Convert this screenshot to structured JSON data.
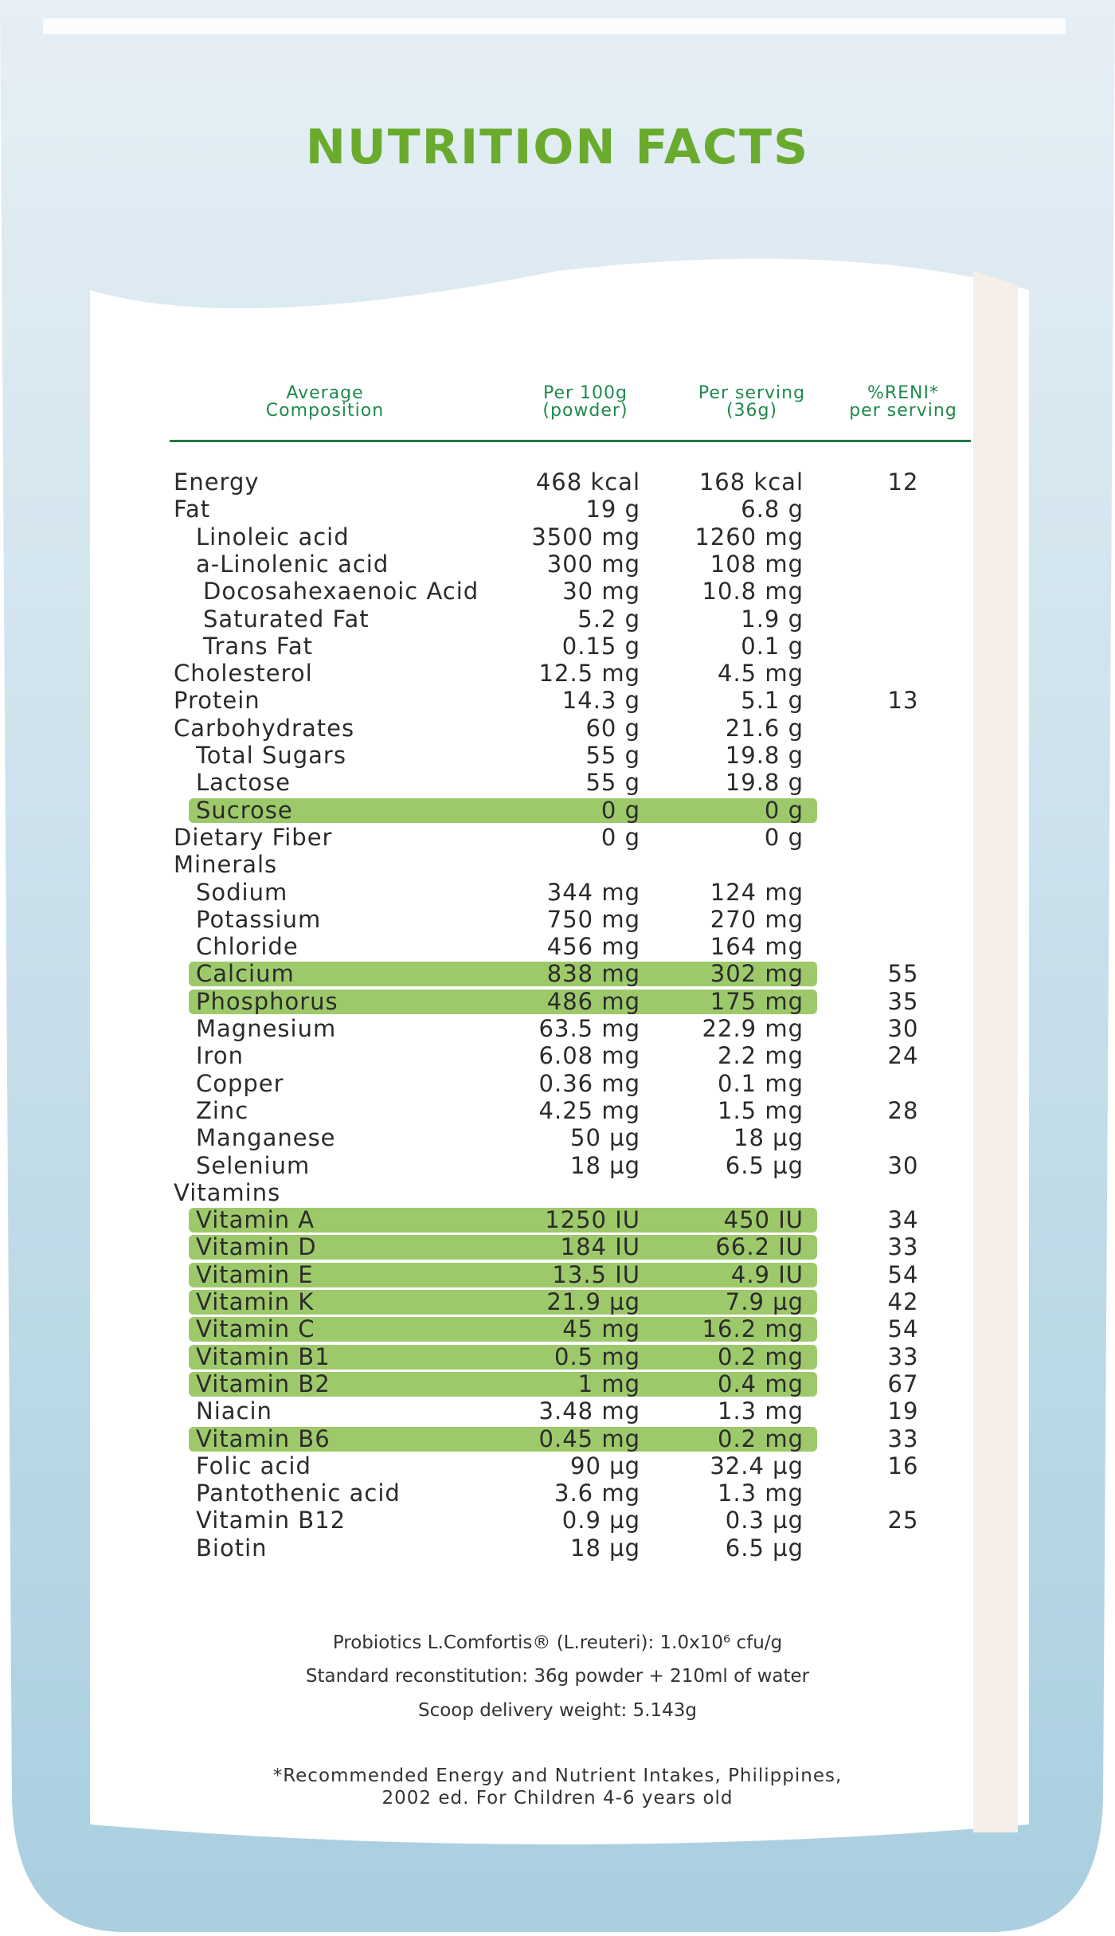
{
  "header": {
    "title": "NUTRITION FACTS"
  },
  "table": {
    "columns": [
      "Average\nComposition",
      "Per 100g\n(powder)",
      "Per serving\n(36g)",
      "%RENI*\nper serving"
    ],
    "rows": [
      [
        "Energy",
        "468 kcal",
        "168 kcal",
        "12"
      ],
      [
        "Fat",
        "19 g",
        "6.8 g"
      ],
      [
        "Linoleic acid",
        "3500 mg",
        "1260 mg"
      ],
      [
        "a-Linolenic acid",
        "300 mg",
        "108 mg"
      ],
      [
        "Docosahexaenoic Acid",
        "30 mg",
        "10.8 mg"
      ],
      [
        "Saturated Fat",
        "5.2 g",
        "1.9 g"
      ],
      [
        "Trans Fat",
        "0.15 g",
        "0.1 g"
      ],
      [
        "Cholesterol",
        "12.5 mg",
        "4.5 mg"
      ],
      [
        "Protein",
        "14.3 g",
        "5.1 g",
        "13"
      ],
      [
        "Carbohydrates",
        "60 g",
        "21.6 g"
      ],
      [
        "Total Sugars",
        "55 g",
        "19.8 g"
      ],
      [
        "Lactose",
        "55 g",
        "19.8 g"
      ],
      [
        "Sucrose",
        "0 g",
        "0 g"
      ],
      [
        "Dietary Fiber",
        "0 g",
        "0 g"
      ],
      [
        "Minerals"
      ],
      [
        "Sodium",
        "344 mg",
        "124 mg"
      ],
      [
        "Potassium",
        "750 mg",
        "270 mg"
      ],
      [
        "Chloride",
        "456 mg",
        "164 mg"
      ],
      [
        "Calcium",
        "838 mg",
        "302 mg",
        "55"
      ],
      [
        "Phosphorus",
        "486 mg",
        "175 mg",
        "35"
      ],
      [
        "Magnesium",
        "63.5 mg",
        "22.9 mg",
        "30"
      ],
      [
        "Iron",
        "6.08 mg",
        "2.2 mg",
        "24"
      ],
      [
        "Copper",
        "0.36 mg",
        "0.1 mg"
      ],
      [
        "Zinc",
        "4.25 mg",
        "1.5 mg",
        "28"
      ],
      [
        "Manganese",
        "50 µg",
        "18 µg"
      ],
      [
        "Selenium",
        "18 µg",
        "6.5 µg",
        "30"
      ],
      [
        "Vitamins"
      ],
      [
        "Vitamin A",
        "1250 IU",
        "450 IU",
        "34"
      ],
      [
        "Vitamin D",
        "184 IU",
        "66.2 IU",
        "33"
      ],
      [
        "Vitamin E",
        "13.5 IU",
        "4.9 IU",
        "54"
      ],
      [
        "Vitamin K",
        "21.9 µg",
        "7.9 µg",
        "42"
      ],
      [
        "Vitamin C",
        "45 mg",
        "16.2 mg",
        "54"
      ],
      [
        "Vitamin B1",
        "0.5 mg",
        "0.2 mg",
        "33"
      ],
      [
        "Vitamin B2",
        "1 mg",
        "0.4 mg",
        "67"
      ],
      [
        "Niacin",
        "3.48 mg",
        "1.3 mg",
        "19"
      ],
      [
        "Vitamin B6",
        "0.45 mg",
        "0.2 mg",
        "33"
      ],
      [
        "Folic acid",
        "90 µg",
        "32.4 µg",
        "16"
      ],
      [
        "Pantothenic acid",
        "3.6 mg",
        "1.3 mg"
      ],
      [
        "Vitamin B12",
        "0.9 µg",
        "0.3 µg",
        "25"
      ],
      [
        "Biotin",
        "18 µg",
        "6.5 µg"
      ]
    ]
  },
  "notes": [
    "Probiotics L.Comfortis® (L.reuteri): 1.0x10⁶ cfu/g",
    "Standard reconstitution: 36g powder + 210ml of water",
    "Scoop delivery weight: 5.143g"
  ],
  "footnote": "*Recommended Energy and Nutrient Intakes, Philippines,\n2002 ed. For Children 4-6 years old"
}
